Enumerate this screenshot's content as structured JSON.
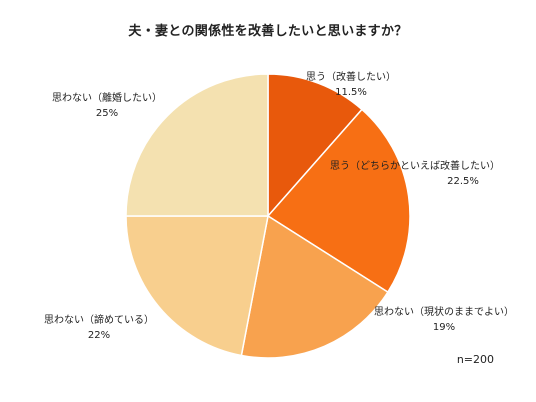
{
  "chart_data": {
    "type": "pie",
    "title": "夫・妻との関係性を改善したいと思いますか？",
    "slices": [
      {
        "label": "思う（改善したい）",
        "value": 11.5,
        "value_label": "11.5%",
        "color": "#E8590C"
      },
      {
        "label": "思う（どちらかといえば改善したい）",
        "value": 22.5,
        "value_label": "22.5%",
        "color": "#F76F14"
      },
      {
        "label": "思わない（現状のままでよい）",
        "value": 19,
        "value_label": "19%",
        "color": "#F8A24E"
      },
      {
        "label": "思わない（諦めている）",
        "value": 22,
        "value_label": "22%",
        "color": "#F8CF8E"
      },
      {
        "label": "思わない（離婚したい）",
        "value": 25,
        "value_label": "25%",
        "color": "#F4E1B0"
      }
    ],
    "start": "12 o'clock",
    "direction": "clockwise",
    "note": "n=200"
  }
}
